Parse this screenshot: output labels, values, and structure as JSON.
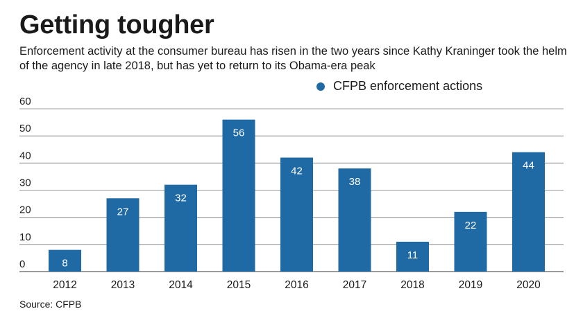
{
  "title": "Getting tougher",
  "subtitle": "Enforcement activity at the consumer bureau has risen in the two years since Kathy Kraninger took the helm of the agency in late 2018, but has yet to return to its Obama-era peak",
  "source": "Source: CFPB",
  "colors": {
    "bar": "#1f69a4",
    "gridline": "#7a7a7a",
    "text": "#1a1a1a",
    "bar_label": "#ffffff"
  },
  "chart_data": {
    "type": "bar",
    "categories": [
      "2012",
      "2013",
      "2014",
      "2015",
      "2016",
      "2017",
      "2018",
      "2019",
      "2020"
    ],
    "series": [
      {
        "name": "CFPB enforcement actions",
        "values": [
          8,
          27,
          32,
          56,
          42,
          38,
          11,
          22,
          44
        ]
      }
    ],
    "ylim": [
      0,
      60
    ],
    "yticks": [
      "0",
      "10",
      "20",
      "30",
      "40",
      "50",
      "60"
    ],
    "grid": true,
    "legend_position": "top-right",
    "data_labels": true
  }
}
